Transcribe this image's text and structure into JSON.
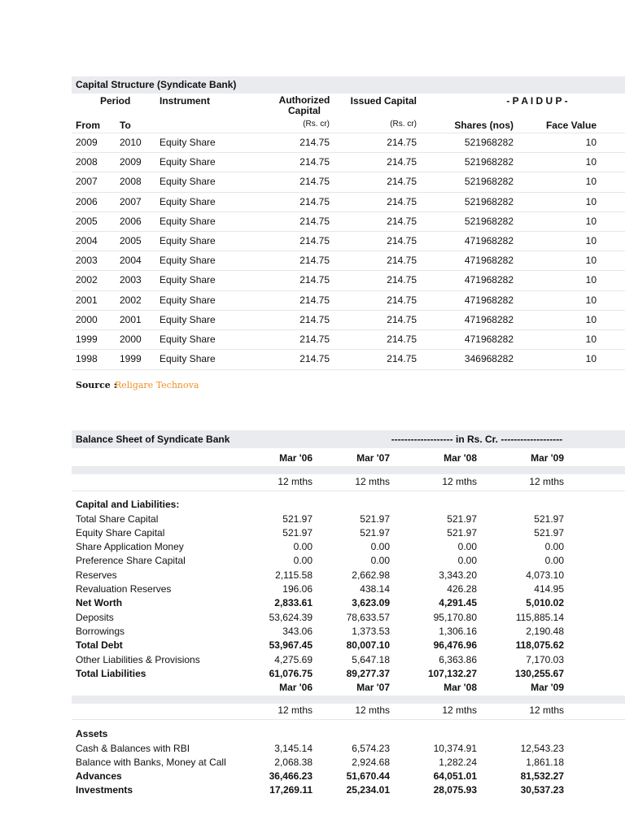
{
  "capital_structure": {
    "title": "Capital Structure (Syndicate Bank)",
    "headers": {
      "period": "Period",
      "instrument": "Instrument",
      "authorized": "Authorized Capital",
      "issued": "Issued Capital",
      "paidup": "- P A I D U P -",
      "from": "From",
      "to": "To",
      "authorized_unit": "(Rs. cr)",
      "issued_unit": "(Rs. cr)",
      "shares": "Shares (nos)",
      "face_value": "Face Value"
    },
    "rows": [
      [
        "2009",
        "2010",
        "Equity Share",
        "214.75",
        "214.75",
        "521968282",
        "10"
      ],
      [
        "2008",
        "2009",
        "Equity Share",
        "214.75",
        "214.75",
        "521968282",
        "10"
      ],
      [
        "2007",
        "2008",
        "Equity Share",
        "214.75",
        "214.75",
        "521968282",
        "10"
      ],
      [
        "2006",
        "2007",
        "Equity Share",
        "214.75",
        "214.75",
        "521968282",
        "10"
      ],
      [
        "2005",
        "2006",
        "Equity Share",
        "214.75",
        "214.75",
        "521968282",
        "10"
      ],
      [
        "2004",
        "2005",
        "Equity Share",
        "214.75",
        "214.75",
        "471968282",
        "10"
      ],
      [
        "2003",
        "2004",
        "Equity Share",
        "214.75",
        "214.75",
        "471968282",
        "10"
      ],
      [
        "2002",
        "2003",
        "Equity Share",
        "214.75",
        "214.75",
        "471968282",
        "10"
      ],
      [
        "2001",
        "2002",
        "Equity Share",
        "214.75",
        "214.75",
        "471968282",
        "10"
      ],
      [
        "2000",
        "2001",
        "Equity Share",
        "214.75",
        "214.75",
        "471968282",
        "10"
      ],
      [
        "1999",
        "2000",
        "Equity Share",
        "214.75",
        "214.75",
        "471968282",
        "10"
      ],
      [
        "1998",
        "1999",
        "Equity Share",
        "214.75",
        "214.75",
        "346968282",
        "10"
      ]
    ]
  },
  "source": {
    "label": "Source :",
    "name": "Religare Technova"
  },
  "balance_sheet": {
    "title": "Balance Sheet of Syndicate Bank",
    "unit_note": "------------------- in Rs. Cr. -------------------",
    "periods": [
      "Mar '06",
      "Mar '07",
      "Mar '08",
      "Mar '09"
    ],
    "durations": [
      "12 mths",
      "12 mths",
      "12 mths",
      "12 mths"
    ],
    "sections": [
      {
        "heading": "Capital and Liabilities:",
        "rows": [
          {
            "label": "Total Share Capital",
            "bold": false,
            "values": [
              "521.97",
              "521.97",
              "521.97",
              "521.97"
            ]
          },
          {
            "label": "Equity Share Capital",
            "bold": false,
            "values": [
              "521.97",
              "521.97",
              "521.97",
              "521.97"
            ]
          },
          {
            "label": "Share Application Money",
            "bold": false,
            "values": [
              "0.00",
              "0.00",
              "0.00",
              "0.00"
            ]
          },
          {
            "label": "Preference Share Capital",
            "bold": false,
            "values": [
              "0.00",
              "0.00",
              "0.00",
              "0.00"
            ]
          },
          {
            "label": "Reserves",
            "bold": false,
            "values": [
              "2,115.58",
              "2,662.98",
              "3,343.20",
              "4,073.10"
            ]
          },
          {
            "label": "Revaluation Reserves",
            "bold": false,
            "values": [
              "196.06",
              "438.14",
              "426.28",
              "414.95"
            ]
          },
          {
            "label": "Net Worth",
            "bold": true,
            "values": [
              "2,833.61",
              "3,623.09",
              "4,291.45",
              "5,010.02"
            ]
          },
          {
            "label": "Deposits",
            "bold": false,
            "values": [
              "53,624.39",
              "78,633.57",
              "95,170.80",
              "115,885.14"
            ]
          },
          {
            "label": "Borrowings",
            "bold": false,
            "values": [
              "343.06",
              "1,373.53",
              "1,306.16",
              "2,190.48"
            ]
          },
          {
            "label": "Total Debt",
            "bold": true,
            "values": [
              "53,967.45",
              "80,007.10",
              "96,476.96",
              "118,075.62"
            ]
          },
          {
            "label": "Other Liabilities & Provisions",
            "bold": false,
            "values": [
              "4,275.69",
              "5,647.18",
              "6,363.86",
              "7,170.03"
            ]
          },
          {
            "label": "Total Liabilities",
            "bold": true,
            "values": [
              "61,076.75",
              "89,277.37",
              "107,132.27",
              "130,255.67"
            ]
          }
        ]
      },
      {
        "heading": "Assets",
        "rows": [
          {
            "label": "Cash & Balances with RBI",
            "bold": false,
            "values": [
              "3,145.14",
              "6,574.23",
              "10,374.91",
              "12,543.23"
            ]
          },
          {
            "label": "Balance with Banks, Money at Call",
            "bold": false,
            "values": [
              "2,068.38",
              "2,924.68",
              "1,282.24",
              "1,861.18"
            ]
          },
          {
            "label": "Advances",
            "bold": true,
            "values": [
              "36,466.23",
              "51,670.44",
              "64,051.01",
              "81,532.27"
            ]
          },
          {
            "label": "Investments",
            "bold": true,
            "values": [
              "17,269.11",
              "25,234.01",
              "28,075.93",
              "30,537.23"
            ]
          }
        ]
      }
    ]
  }
}
